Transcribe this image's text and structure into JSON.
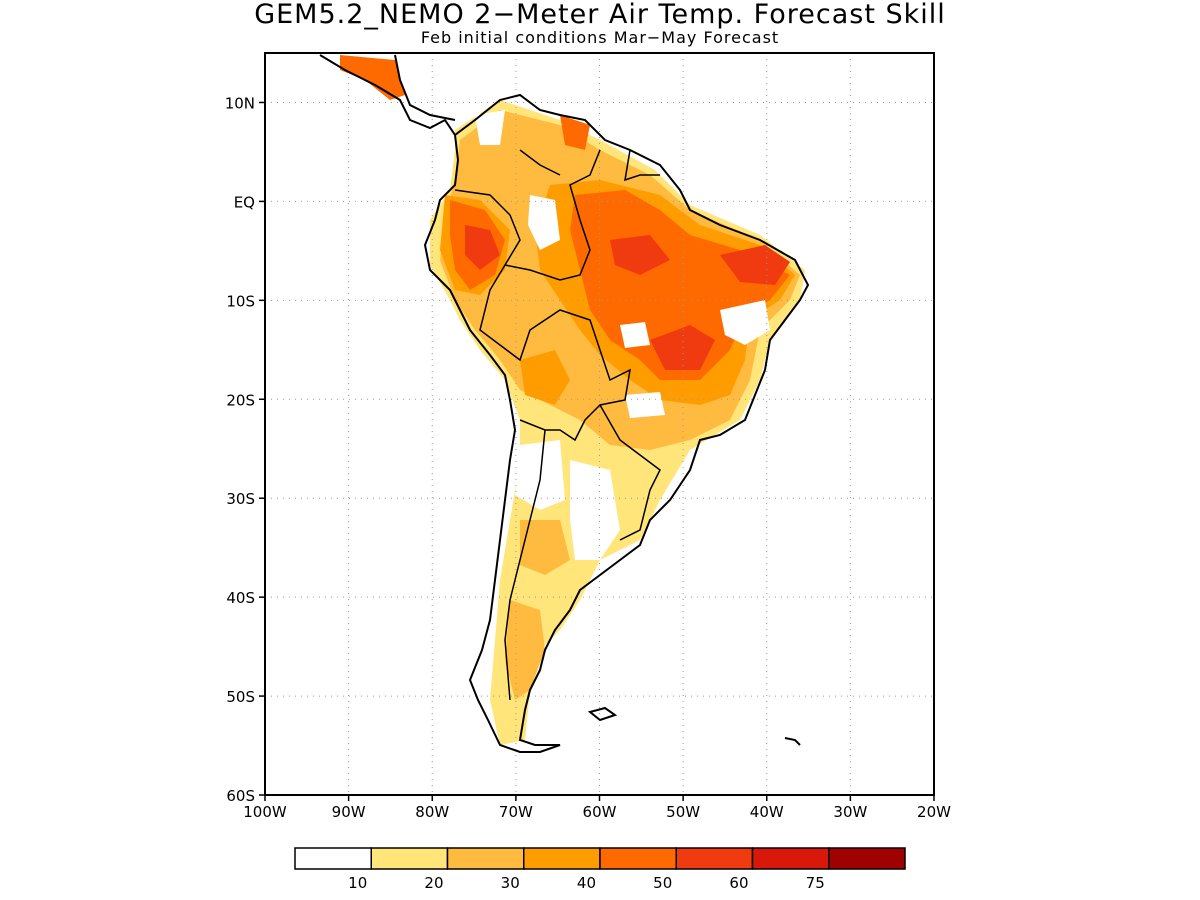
{
  "title": "GEM5.2_NEMO 2−Meter Air Temp. Forecast Skill",
  "subtitle": "Feb initial conditions  Mar−May Forecast",
  "map": {
    "lon_range": [
      -100,
      -20
    ],
    "lat_range": [
      -60,
      15
    ],
    "grid": "dotted",
    "lat_ticks": [
      {
        "value": 10,
        "label": "10N"
      },
      {
        "value": 0,
        "label": "EQ"
      },
      {
        "value": -10,
        "label": "10S"
      },
      {
        "value": -20,
        "label": "20S"
      },
      {
        "value": -30,
        "label": "30S"
      },
      {
        "value": -40,
        "label": "40S"
      },
      {
        "value": -50,
        "label": "50S"
      },
      {
        "value": -60,
        "label": "60S"
      }
    ],
    "lon_ticks": [
      {
        "value": -100,
        "label": "100W"
      },
      {
        "value": -90,
        "label": "90W"
      },
      {
        "value": -80,
        "label": "80W"
      },
      {
        "value": -70,
        "label": "70W"
      },
      {
        "value": -60,
        "label": "60W"
      },
      {
        "value": -50,
        "label": "50W"
      },
      {
        "value": -40,
        "label": "40W"
      },
      {
        "value": -30,
        "label": "30W"
      },
      {
        "value": -20,
        "label": "20W"
      }
    ]
  },
  "legend": {
    "colors": [
      "#ffffff",
      "#ffe57a",
      "#ffbb40",
      "#ff9d00",
      "#ff6a00",
      "#f03a10",
      "#d81808",
      "#a00000"
    ],
    "labels": [
      "10",
      "20",
      "30",
      "40",
      "50",
      "60",
      "75"
    ]
  }
}
